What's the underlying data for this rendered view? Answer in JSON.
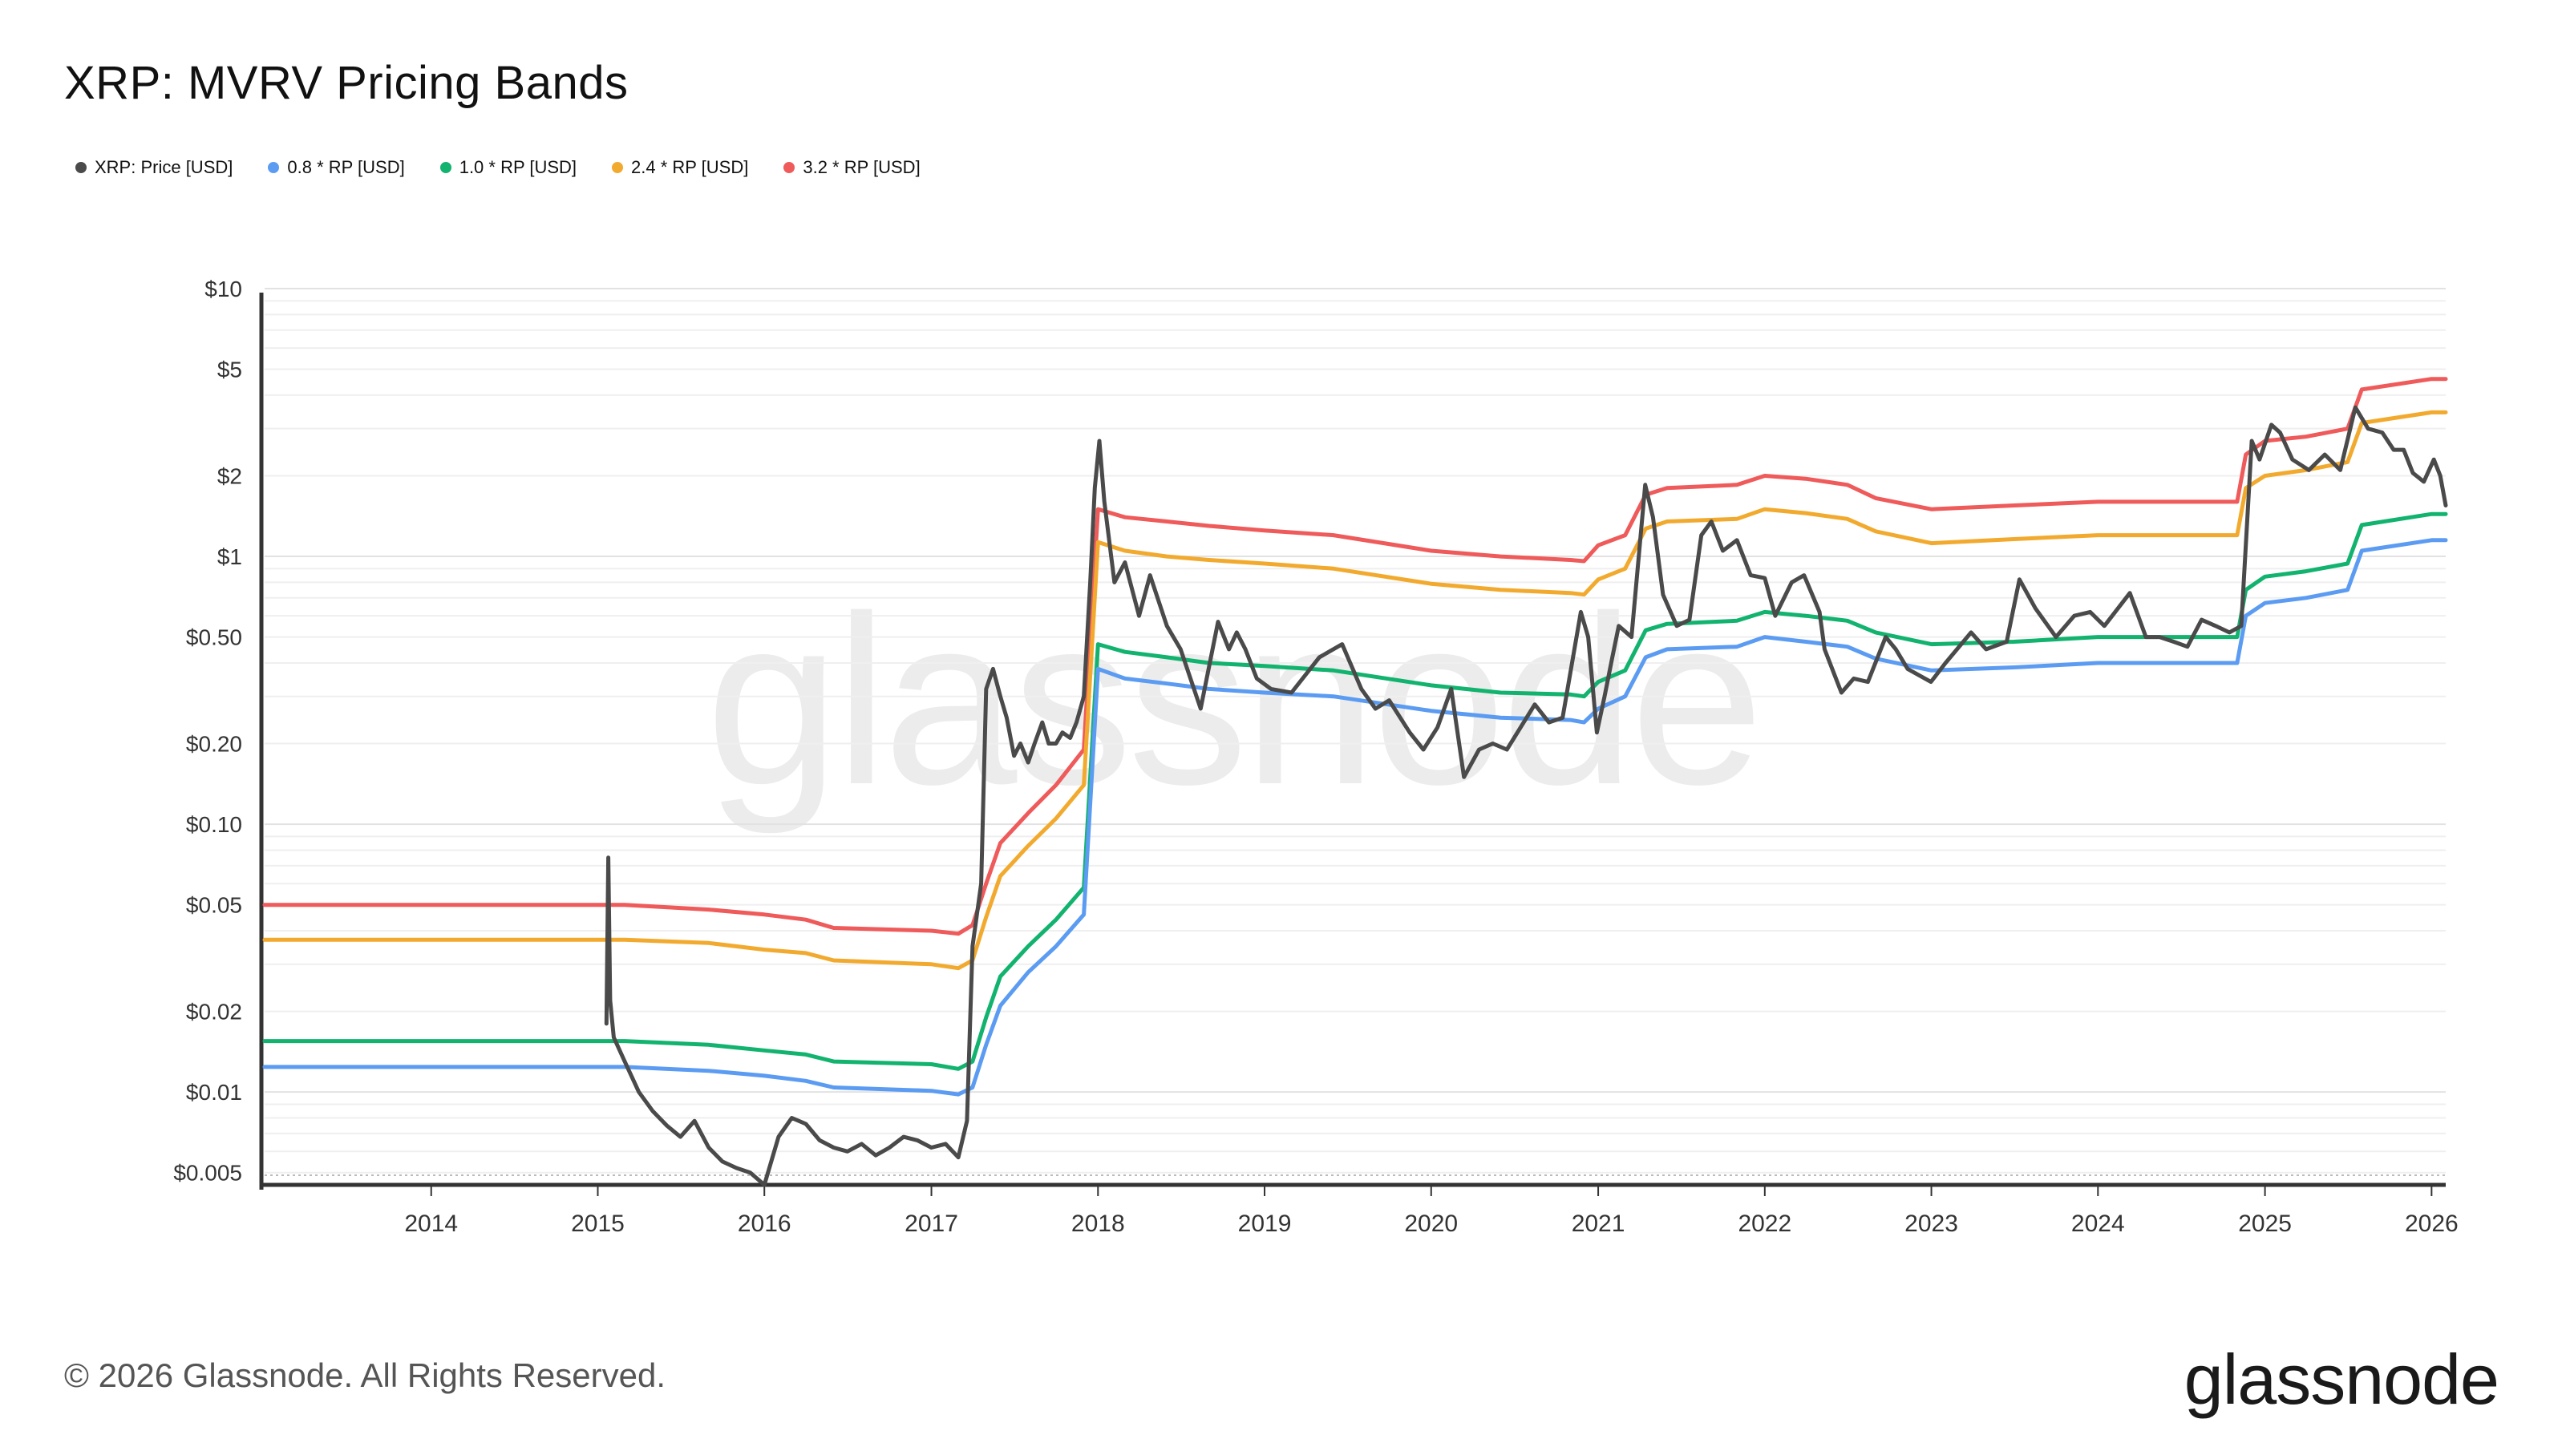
{
  "title": "XRP: MVRV Pricing Bands",
  "legend": [
    {
      "label": "XRP: Price [USD]",
      "color": "#4a4a4a"
    },
    {
      "label": "0.8 * RP [USD]",
      "color": "#5b9cf2"
    },
    {
      "label": "1.0 * RP [USD]",
      "color": "#12b36f"
    },
    {
      "label": "2.4 * RP [USD]",
      "color": "#f2aa2e"
    },
    {
      "label": "3.2 * RP [USD]",
      "color": "#ef5a5a"
    }
  ],
  "footer": "© 2026 Glassnode. All Rights Reserved.",
  "brand": "glassnode",
  "watermark": "glassnode",
  "chart_data": {
    "type": "line",
    "title": "XRP: MVRV Pricing Bands",
    "y_scale": "log",
    "ylim": [
      0.0045,
      10
    ],
    "xlim": [
      "2013-01-01",
      "2026-02-01"
    ],
    "y_ticks": [
      {
        "value": 10,
        "label": "$10"
      },
      {
        "value": 5,
        "label": "$5"
      },
      {
        "value": 2,
        "label": "$2"
      },
      {
        "value": 1,
        "label": "$1"
      },
      {
        "value": 0.5,
        "label": "$0.50"
      },
      {
        "value": 0.2,
        "label": "$0.20"
      },
      {
        "value": 0.1,
        "label": "$0.10"
      },
      {
        "value": 0.05,
        "label": "$0.05"
      },
      {
        "value": 0.02,
        "label": "$0.02"
      },
      {
        "value": 0.01,
        "label": "$0.01"
      },
      {
        "value": 0.005,
        "label": "$0.005"
      }
    ],
    "x_ticks": [
      {
        "value": "2014-01-01",
        "label": "2014"
      },
      {
        "value": "2015-01-01",
        "label": "2015"
      },
      {
        "value": "2016-01-01",
        "label": "2016"
      },
      {
        "value": "2017-01-01",
        "label": "2017"
      },
      {
        "value": "2018-01-01",
        "label": "2018"
      },
      {
        "value": "2019-01-01",
        "label": "2019"
      },
      {
        "value": "2020-01-01",
        "label": "2020"
      },
      {
        "value": "2021-01-01",
        "label": "2021"
      },
      {
        "value": "2022-01-01",
        "label": "2022"
      },
      {
        "value": "2023-01-01",
        "label": "2023"
      },
      {
        "value": "2024-01-01",
        "label": "2024"
      },
      {
        "value": "2025-01-01",
        "label": "2025"
      },
      {
        "value": "2026-01-01",
        "label": "2026"
      }
    ],
    "grid": true,
    "legend_position": "top-left",
    "series": [
      {
        "name": "3.2 * RP [USD]",
        "color": "#ef5a5a",
        "x": [
          "2013-01-01",
          "2015-03-01",
          "2015-09-01",
          "2016-01-01",
          "2016-04-01",
          "2016-06-01",
          "2017-01-01",
          "2017-03-01",
          "2017-04-01",
          "2017-05-01",
          "2017-06-01",
          "2017-08-01",
          "2017-10-01",
          "2017-12-01",
          "2018-01-01",
          "2018-03-01",
          "2018-06-01",
          "2018-09-01",
          "2019-01-01",
          "2019-06-01",
          "2020-01-01",
          "2020-06-01",
          "2020-11-01",
          "2020-12-01",
          "2021-01-01",
          "2021-03-01",
          "2021-04-15",
          "2021-06-01",
          "2021-11-01",
          "2022-01-01",
          "2022-04-01",
          "2022-07-01",
          "2022-09-01",
          "2023-01-01",
          "2023-07-01",
          "2024-01-01",
          "2024-11-01",
          "2024-11-20",
          "2025-01-01",
          "2025-04-01",
          "2025-07-01",
          "2025-08-01",
          "2026-01-01",
          "2026-02-01"
        ],
        "values": [
          0.05,
          0.05,
          0.048,
          0.046,
          0.044,
          0.041,
          0.04,
          0.039,
          0.042,
          0.06,
          0.085,
          0.11,
          0.14,
          0.19,
          1.5,
          1.4,
          1.35,
          1.3,
          1.25,
          1.2,
          1.05,
          1.0,
          0.97,
          0.96,
          1.1,
          1.2,
          1.7,
          1.8,
          1.85,
          2.0,
          1.95,
          1.85,
          1.65,
          1.5,
          1.55,
          1.6,
          1.6,
          2.4,
          2.7,
          2.8,
          3.0,
          4.2,
          4.6,
          4.6
        ]
      },
      {
        "name": "2.4 * RP [USD]",
        "color": "#f2aa2e",
        "x": [
          "2013-01-01",
          "2015-03-01",
          "2015-09-01",
          "2016-01-01",
          "2016-04-01",
          "2016-06-01",
          "2017-01-01",
          "2017-03-01",
          "2017-04-01",
          "2017-05-01",
          "2017-06-01",
          "2017-08-01",
          "2017-10-01",
          "2017-12-01",
          "2018-01-01",
          "2018-03-01",
          "2018-06-01",
          "2018-09-01",
          "2019-01-01",
          "2019-06-01",
          "2020-01-01",
          "2020-06-01",
          "2020-11-01",
          "2020-12-01",
          "2021-01-01",
          "2021-03-01",
          "2021-04-15",
          "2021-06-01",
          "2021-11-01",
          "2022-01-01",
          "2022-04-01",
          "2022-07-01",
          "2022-09-01",
          "2023-01-01",
          "2023-07-01",
          "2024-01-01",
          "2024-11-01",
          "2024-11-20",
          "2025-01-01",
          "2025-04-01",
          "2025-07-01",
          "2025-08-01",
          "2026-01-01",
          "2026-02-01"
        ],
        "values": [
          0.037,
          0.037,
          0.036,
          0.034,
          0.033,
          0.031,
          0.03,
          0.029,
          0.031,
          0.045,
          0.064,
          0.083,
          0.105,
          0.14,
          1.13,
          1.05,
          1.0,
          0.97,
          0.94,
          0.9,
          0.79,
          0.75,
          0.73,
          0.72,
          0.82,
          0.9,
          1.27,
          1.35,
          1.38,
          1.5,
          1.45,
          1.38,
          1.24,
          1.12,
          1.16,
          1.2,
          1.2,
          1.8,
          2.0,
          2.1,
          2.25,
          3.15,
          3.45,
          3.45
        ]
      },
      {
        "name": "1.0 * RP [USD]",
        "color": "#12b36f",
        "x": [
          "2013-01-01",
          "2015-03-01",
          "2015-09-01",
          "2016-01-01",
          "2016-04-01",
          "2016-06-01",
          "2017-01-01",
          "2017-03-01",
          "2017-04-01",
          "2017-05-01",
          "2017-06-01",
          "2017-08-01",
          "2017-10-01",
          "2017-12-01",
          "2018-01-01",
          "2018-03-01",
          "2018-06-01",
          "2018-09-01",
          "2019-01-01",
          "2019-06-01",
          "2020-01-01",
          "2020-06-01",
          "2020-11-01",
          "2020-12-01",
          "2021-01-01",
          "2021-03-01",
          "2021-04-15",
          "2021-06-01",
          "2021-11-01",
          "2022-01-01",
          "2022-04-01",
          "2022-07-01",
          "2022-09-01",
          "2023-01-01",
          "2023-07-01",
          "2024-01-01",
          "2024-11-01",
          "2024-11-20",
          "2025-01-01",
          "2025-04-01",
          "2025-07-01",
          "2025-08-01",
          "2026-01-01",
          "2026-02-01"
        ],
        "values": [
          0.0155,
          0.0155,
          0.015,
          0.0143,
          0.0138,
          0.013,
          0.0127,
          0.0122,
          0.013,
          0.019,
          0.027,
          0.035,
          0.044,
          0.058,
          0.47,
          0.44,
          0.42,
          0.4,
          0.39,
          0.375,
          0.33,
          0.31,
          0.305,
          0.3,
          0.34,
          0.375,
          0.53,
          0.56,
          0.575,
          0.62,
          0.6,
          0.575,
          0.52,
          0.47,
          0.48,
          0.5,
          0.5,
          0.75,
          0.84,
          0.88,
          0.94,
          1.31,
          1.44,
          1.44
        ]
      },
      {
        "name": "0.8 * RP [USD]",
        "color": "#5b9cf2",
        "x": [
          "2013-01-01",
          "2015-03-01",
          "2015-09-01",
          "2016-01-01",
          "2016-04-01",
          "2016-06-01",
          "2017-01-01",
          "2017-03-01",
          "2017-04-01",
          "2017-05-01",
          "2017-06-01",
          "2017-08-01",
          "2017-10-01",
          "2017-12-01",
          "2018-01-01",
          "2018-03-01",
          "2018-06-01",
          "2018-09-01",
          "2019-01-01",
          "2019-06-01",
          "2020-01-01",
          "2020-06-01",
          "2020-11-01",
          "2020-12-01",
          "2021-01-01",
          "2021-03-01",
          "2021-04-15",
          "2021-06-01",
          "2021-11-01",
          "2022-01-01",
          "2022-04-01",
          "2022-07-01",
          "2022-09-01",
          "2023-01-01",
          "2023-07-01",
          "2024-01-01",
          "2024-11-01",
          "2024-11-20",
          "2025-01-01",
          "2025-04-01",
          "2025-07-01",
          "2025-08-01",
          "2026-01-01",
          "2026-02-01"
        ],
        "values": [
          0.0124,
          0.0124,
          0.012,
          0.0115,
          0.011,
          0.0104,
          0.0101,
          0.0098,
          0.0104,
          0.015,
          0.021,
          0.028,
          0.035,
          0.046,
          0.38,
          0.35,
          0.335,
          0.32,
          0.31,
          0.3,
          0.265,
          0.25,
          0.245,
          0.24,
          0.27,
          0.3,
          0.42,
          0.45,
          0.46,
          0.5,
          0.48,
          0.46,
          0.415,
          0.375,
          0.385,
          0.4,
          0.4,
          0.6,
          0.67,
          0.7,
          0.75,
          1.05,
          1.15,
          1.15
        ]
      },
      {
        "name": "XRP: Price [USD]",
        "color": "#4a4a4a",
        "x": [
          "2015-01-20",
          "2015-01-24",
          "2015-01-28",
          "2015-02-05",
          "2015-03-01",
          "2015-04-01",
          "2015-05-01",
          "2015-06-01",
          "2015-07-01",
          "2015-08-01",
          "2015-09-01",
          "2015-10-01",
          "2015-11-01",
          "2015-12-01",
          "2016-01-01",
          "2016-02-01",
          "2016-03-01",
          "2016-04-01",
          "2016-05-01",
          "2016-06-01",
          "2016-07-01",
          "2016-08-01",
          "2016-09-01",
          "2016-10-01",
          "2016-11-01",
          "2016-12-01",
          "2017-01-01",
          "2017-02-01",
          "2017-03-01",
          "2017-03-20",
          "2017-04-01",
          "2017-04-20",
          "2017-05-01",
          "2017-05-16",
          "2017-06-01",
          "2017-06-15",
          "2017-07-01",
          "2017-07-15",
          "2017-08-01",
          "2017-08-15",
          "2017-09-01",
          "2017-09-15",
          "2017-10-01",
          "2017-10-15",
          "2017-11-01",
          "2017-11-15",
          "2017-12-01",
          "2017-12-15",
          "2017-12-25",
          "2018-01-04",
          "2018-01-15",
          "2018-02-06",
          "2018-03-01",
          "2018-04-01",
          "2018-04-25",
          "2018-06-01",
          "2018-07-01",
          "2018-08-14",
          "2018-09-21",
          "2018-10-15",
          "2018-11-01",
          "2018-11-20",
          "2018-12-15",
          "2019-01-15",
          "2019-03-01",
          "2019-05-01",
          "2019-06-20",
          "2019-08-01",
          "2019-09-01",
          "2019-10-01",
          "2019-11-15",
          "2019-12-15",
          "2020-01-15",
          "2020-02-14",
          "2020-03-13",
          "2020-04-15",
          "2020-05-15",
          "2020-06-15",
          "2020-07-15",
          "2020-08-15",
          "2020-09-15",
          "2020-10-15",
          "2020-11-24",
          "2020-12-10",
          "2020-12-29",
          "2021-01-15",
          "2021-02-01",
          "2021-02-15",
          "2021-03-15",
          "2021-04-14",
          "2021-05-01",
          "2021-05-23",
          "2021-06-22",
          "2021-07-20",
          "2021-08-15",
          "2021-09-06",
          "2021-10-01",
          "2021-11-01",
          "2021-12-01",
          "2022-01-01",
          "2022-01-24",
          "2022-03-01",
          "2022-03-28",
          "2022-05-01",
          "2022-05-12",
          "2022-06-18",
          "2022-07-15",
          "2022-08-15",
          "2022-09-23",
          "2022-10-15",
          "2022-11-10",
          "2022-12-31",
          "2023-02-01",
          "2023-03-29",
          "2023-05-01",
          "2023-06-15",
          "2023-07-13",
          "2023-08-17",
          "2023-10-01",
          "2023-11-10",
          "2023-12-15",
          "2024-01-15",
          "2024-03-11",
          "2024-04-15",
          "2024-05-15",
          "2024-06-15",
          "2024-07-15",
          "2024-08-15",
          "2024-09-15",
          "2024-10-15",
          "2024-11-10",
          "2024-11-20",
          "2024-12-03",
          "2024-12-20",
          "2025-01-15",
          "2025-02-03",
          "2025-03-02",
          "2025-04-07",
          "2025-05-12",
          "2025-06-15",
          "2025-07-18",
          "2025-08-15",
          "2025-09-15",
          "2025-10-10",
          "2025-11-01",
          "2025-11-21",
          "2025-12-15",
          "2026-01-06",
          "2026-01-20",
          "2026-02-01"
        ],
        "values": [
          0.018,
          0.075,
          0.022,
          0.016,
          0.013,
          0.01,
          0.0085,
          0.0075,
          0.0068,
          0.0078,
          0.0062,
          0.0055,
          0.0052,
          0.005,
          0.0045,
          0.0068,
          0.008,
          0.0076,
          0.0066,
          0.0062,
          0.006,
          0.0064,
          0.0058,
          0.0062,
          0.0068,
          0.0066,
          0.0062,
          0.0064,
          0.0057,
          0.0078,
          0.035,
          0.06,
          0.32,
          0.38,
          0.3,
          0.25,
          0.18,
          0.2,
          0.17,
          0.2,
          0.24,
          0.2,
          0.2,
          0.22,
          0.21,
          0.24,
          0.3,
          0.8,
          1.8,
          2.7,
          1.6,
          0.8,
          0.95,
          0.6,
          0.85,
          0.55,
          0.45,
          0.27,
          0.57,
          0.45,
          0.52,
          0.45,
          0.35,
          0.32,
          0.31,
          0.42,
          0.47,
          0.32,
          0.27,
          0.29,
          0.22,
          0.19,
          0.23,
          0.32,
          0.15,
          0.19,
          0.2,
          0.19,
          0.23,
          0.28,
          0.24,
          0.25,
          0.62,
          0.5,
          0.22,
          0.3,
          0.42,
          0.55,
          0.5,
          1.85,
          1.4,
          0.72,
          0.55,
          0.58,
          1.2,
          1.35,
          1.05,
          1.15,
          0.85,
          0.83,
          0.6,
          0.8,
          0.85,
          0.62,
          0.45,
          0.31,
          0.35,
          0.34,
          0.5,
          0.45,
          0.38,
          0.34,
          0.4,
          0.52,
          0.45,
          0.48,
          0.82,
          0.64,
          0.5,
          0.6,
          0.62,
          0.55,
          0.73,
          0.5,
          0.5,
          0.48,
          0.46,
          0.58,
          0.55,
          0.52,
          0.55,
          1.1,
          2.7,
          2.3,
          3.1,
          2.9,
          2.3,
          2.1,
          2.4,
          2.1,
          3.6,
          3.0,
          2.9,
          2.5,
          2.5,
          2.05,
          1.9,
          2.3,
          2.0,
          1.55
        ]
      }
    ]
  }
}
